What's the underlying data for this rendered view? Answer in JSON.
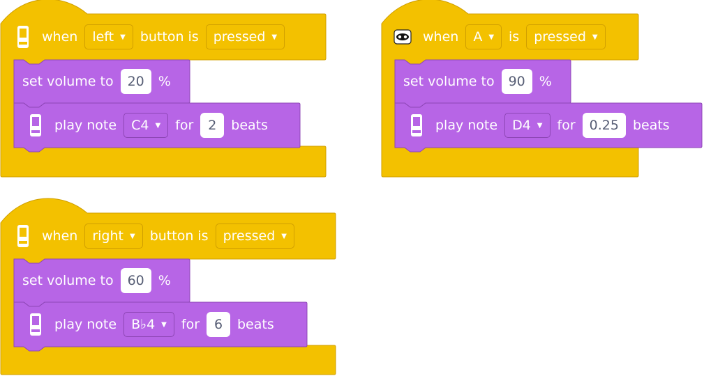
{
  "scripts": [
    {
      "hat": {
        "icon": "microbit-icon",
        "when_label": "when",
        "button_value": "left",
        "mid_label": "button is",
        "state_value": "pressed"
      },
      "volume": {
        "label": "set volume to",
        "value": "20",
        "unit": "%"
      },
      "note": {
        "icon": "microbit-icon",
        "label": "play note",
        "note_value": "C4",
        "for_label": "for",
        "beats_value": "2",
        "beats_label": "beats"
      }
    },
    {
      "hat": {
        "icon": "gamepad-icon",
        "when_label": "when",
        "button_value": "A",
        "mid_label": "is",
        "state_value": "pressed"
      },
      "volume": {
        "label": "set volume to",
        "value": "90",
        "unit": "%"
      },
      "note": {
        "icon": "microbit-icon",
        "label": "play note",
        "note_value": "D4",
        "for_label": "for",
        "beats_value": "0.25",
        "beats_label": "beats"
      }
    },
    {
      "hat": {
        "icon": "microbit-icon",
        "when_label": "when",
        "button_value": "right",
        "mid_label": "button is",
        "state_value": "pressed"
      },
      "volume": {
        "label": "set volume to",
        "value": "60",
        "unit": "%"
      },
      "note": {
        "icon": "microbit-icon",
        "label": "play note",
        "note_value": "B♭4",
        "for_label": "for",
        "beats_value": "6",
        "beats_label": "beats"
      }
    }
  ],
  "colors": {
    "events_fill": "#f3c100",
    "events_stroke": "#d09f00",
    "sound_fill": "#b765e6",
    "sound_stroke": "#8d46b5",
    "text": "#ffffff",
    "input_text": "#575e75"
  }
}
